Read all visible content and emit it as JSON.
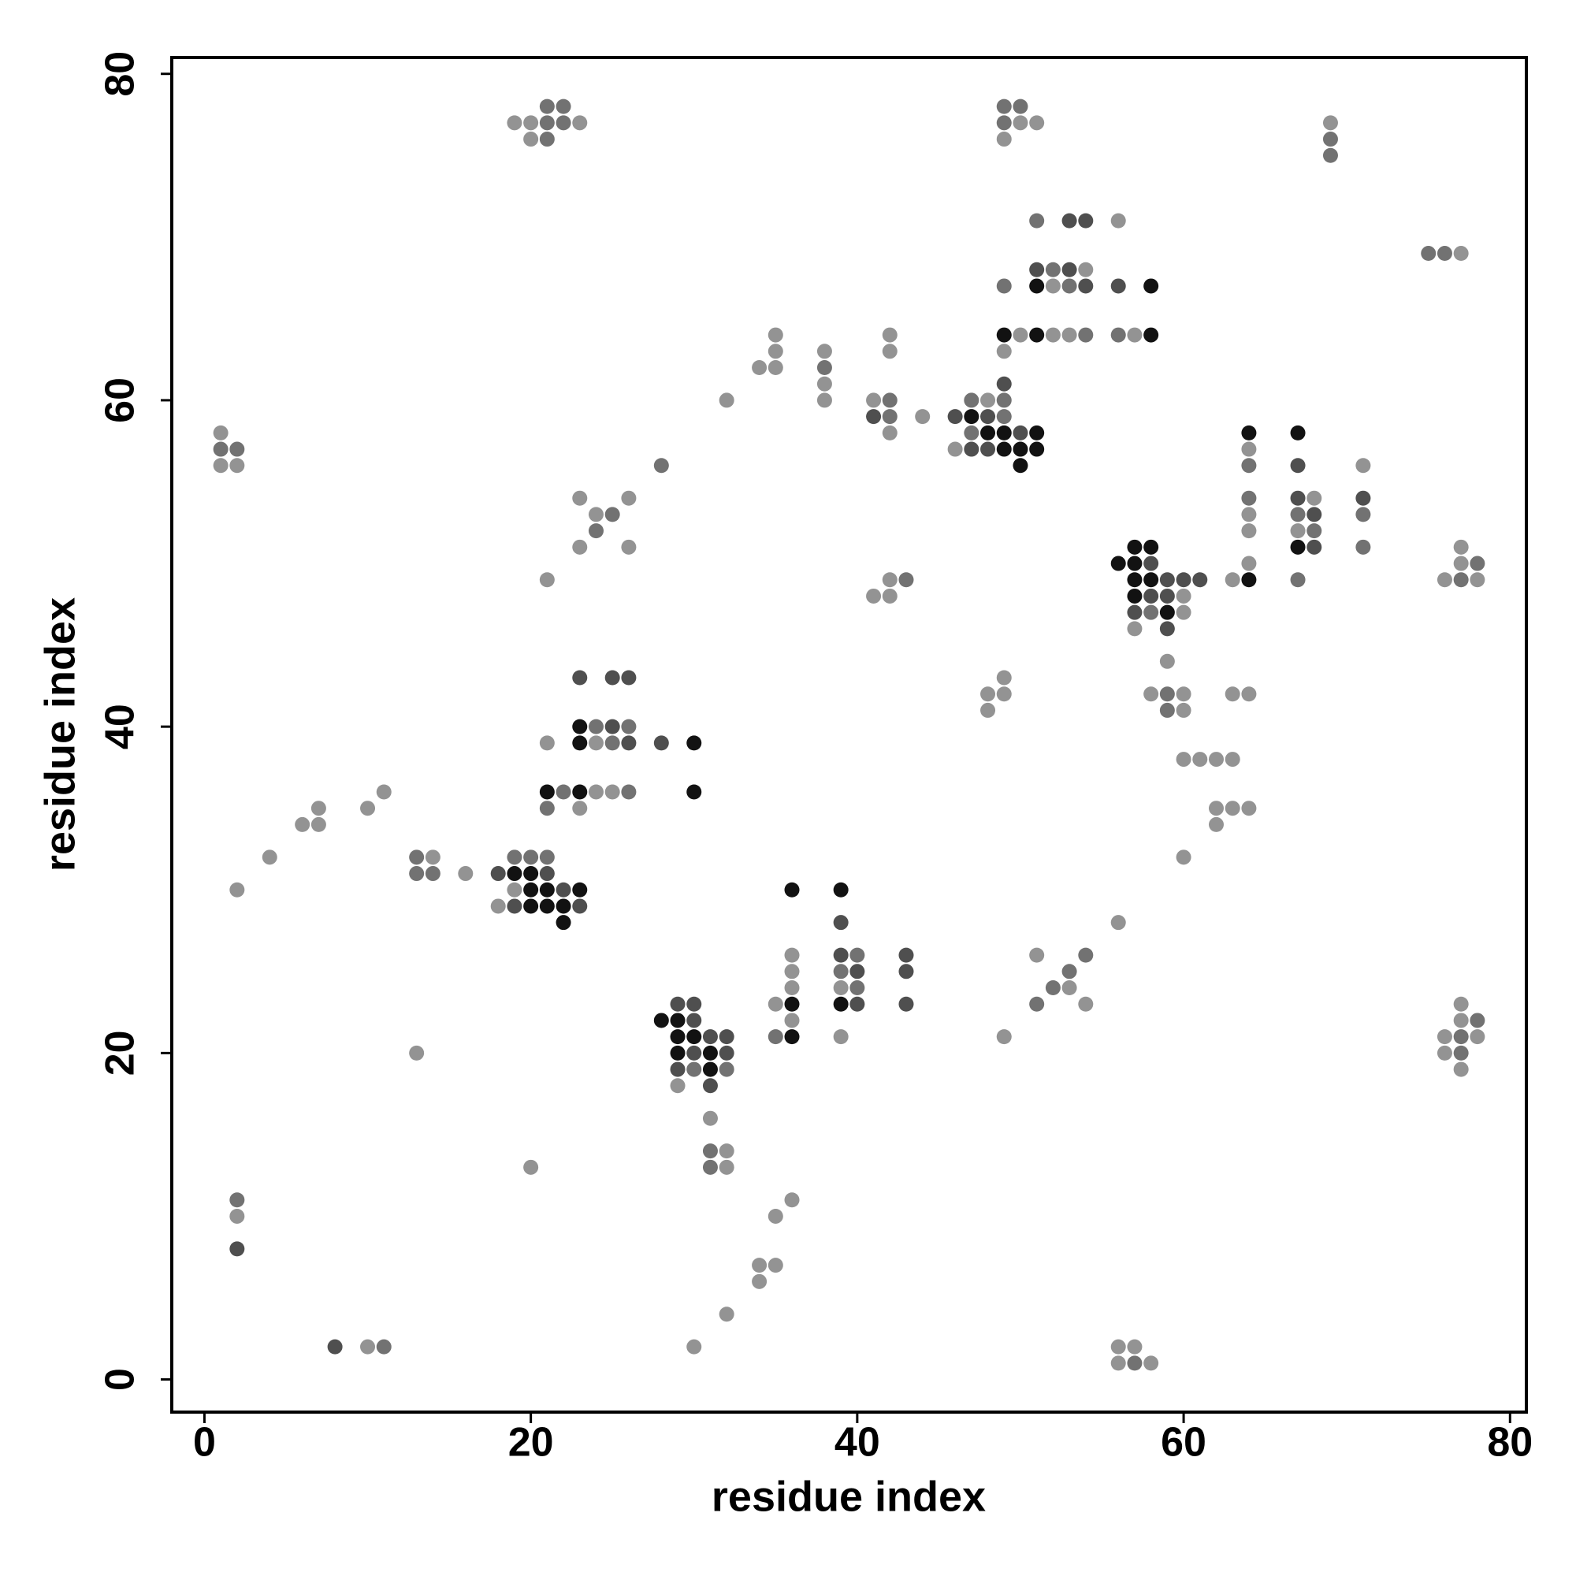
{
  "chart_data": {
    "type": "scatter",
    "x_label": "residue index",
    "y_label": "residue index",
    "xlim": [
      -2,
      81
    ],
    "ylim": [
      -2,
      81
    ],
    "xticks": [
      0,
      20,
      40,
      60,
      80
    ],
    "yticks": [
      0,
      20,
      40,
      60,
      80
    ],
    "series": [
      {
        "color": "#939393",
        "x": [
          19,
          20,
          23,
          20,
          50,
          51,
          49,
          69,
          77,
          56,
          54,
          52,
          50,
          52,
          53,
          57,
          49,
          35,
          35,
          35,
          34,
          38,
          38,
          38,
          42,
          42,
          32,
          41,
          42,
          44,
          48,
          46,
          1,
          1,
          2,
          23,
          24,
          26,
          23,
          26,
          21,
          41,
          42,
          42,
          60,
          60,
          57,
          64,
          64,
          64,
          64,
          63,
          67,
          68,
          71,
          77,
          77,
          78,
          76,
          59,
          58,
          60,
          60,
          48,
          49,
          49,
          48,
          63,
          64,
          60,
          61,
          62,
          63,
          62,
          63,
          64,
          62,
          60,
          21,
          24,
          24,
          25,
          23,
          2,
          4,
          6,
          7,
          7,
          10,
          11,
          14,
          16,
          19,
          18,
          56,
          36,
          36,
          36,
          36,
          35,
          39,
          39,
          51,
          53,
          54,
          49,
          77,
          77,
          76,
          78,
          76,
          77,
          13,
          29,
          31,
          32,
          32,
          20,
          2,
          36,
          35,
          34,
          35,
          34,
          32,
          10,
          30,
          56,
          57,
          56,
          58
        ],
        "values": [
          77,
          77,
          77,
          76,
          77,
          77,
          76,
          77,
          69,
          71,
          68,
          67,
          64,
          64,
          64,
          64,
          63,
          64,
          63,
          62,
          62,
          63,
          61,
          60,
          64,
          63,
          60,
          60,
          58,
          59,
          60,
          57,
          58,
          56,
          56,
          54,
          53,
          54,
          51,
          51,
          49,
          48,
          49,
          48,
          48,
          47,
          46,
          57,
          53,
          52,
          50,
          49,
          52,
          54,
          56,
          51,
          50,
          49,
          49,
          44,
          42,
          42,
          41,
          42,
          42,
          43,
          41,
          42,
          42,
          38,
          38,
          38,
          38,
          35,
          35,
          35,
          34,
          32,
          39,
          39,
          36,
          36,
          35,
          30,
          32,
          34,
          35,
          34,
          35,
          36,
          32,
          31,
          30,
          29,
          28,
          26,
          25,
          24,
          22,
          23,
          24,
          21,
          26,
          24,
          23,
          21,
          23,
          22,
          21,
          21,
          20,
          19,
          20,
          18,
          16,
          14,
          13,
          13,
          10,
          11,
          10,
          7,
          7,
          6,
          4,
          2,
          2,
          2,
          2,
          1,
          1
        ]
      },
      {
        "color": "#727272",
        "x": [
          21,
          22,
          21,
          22,
          21,
          49,
          50,
          49,
          69,
          69,
          75,
          76,
          51,
          52,
          49,
          53,
          54,
          56,
          38,
          42,
          42,
          47,
          49,
          49,
          47,
          1,
          2,
          28,
          25,
          24,
          43,
          58,
          64,
          64,
          67,
          67,
          68,
          71,
          71,
          77,
          78,
          59,
          59,
          24,
          26,
          25,
          22,
          26,
          21,
          13,
          13,
          14,
          19,
          20,
          21,
          30,
          32,
          35,
          39,
          40,
          40,
          52,
          53,
          54,
          51,
          78,
          77,
          77,
          31,
          31,
          2,
          11,
          57
        ],
        "values": [
          77,
          77,
          78,
          78,
          76,
          78,
          78,
          77,
          76,
          75,
          69,
          69,
          71,
          68,
          67,
          67,
          64,
          64,
          62,
          60,
          59,
          60,
          60,
          59,
          58,
          57,
          57,
          56,
          53,
          52,
          49,
          47,
          56,
          54,
          53,
          49,
          52,
          53,
          51,
          49,
          50,
          42,
          41,
          40,
          40,
          39,
          36,
          36,
          35,
          32,
          31,
          31,
          32,
          32,
          32,
          19,
          19,
          21,
          25,
          26,
          24,
          24,
          25,
          26,
          23,
          22,
          21,
          20,
          14,
          13,
          11,
          2,
          1
        ]
      },
      {
        "color": "#4f4f4f",
        "x": [
          53,
          54,
          51,
          53,
          54,
          56,
          41,
          46,
          48,
          50,
          47,
          48,
          49,
          58,
          59,
          60,
          61,
          58,
          59,
          57,
          59,
          67,
          67,
          68,
          68,
          71,
          23,
          25,
          26,
          25,
          26,
          28,
          18,
          21,
          22,
          19,
          23,
          39,
          39,
          40,
          40,
          43,
          43,
          43,
          29,
          30,
          30,
          31,
          32,
          30,
          32,
          29,
          31,
          2,
          8
        ],
        "values": [
          71,
          71,
          68,
          68,
          67,
          67,
          59,
          59,
          59,
          58,
          57,
          57,
          61,
          50,
          49,
          49,
          49,
          48,
          48,
          47,
          46,
          56,
          54,
          53,
          51,
          54,
          43,
          43,
          43,
          40,
          39,
          39,
          31,
          31,
          30,
          29,
          29,
          28,
          26,
          25,
          23,
          26,
          25,
          23,
          23,
          23,
          22,
          21,
          21,
          20,
          20,
          19,
          18,
          8,
          2
        ]
      },
      {
        "color": "#121212",
        "x": [
          51,
          58,
          49,
          51,
          58,
          47,
          48,
          49,
          51,
          49,
          50,
          51,
          50,
          57,
          58,
          56,
          57,
          57,
          58,
          57,
          59,
          64,
          64,
          67,
          67,
          23,
          23,
          30,
          21,
          23,
          30,
          19,
          20,
          20,
          21,
          23,
          20,
          21,
          22,
          22,
          36,
          39,
          36,
          36,
          39,
          28,
          29,
          29,
          30,
          29,
          31,
          31
        ],
        "values": [
          67,
          67,
          64,
          64,
          64,
          59,
          58,
          58,
          58,
          57,
          57,
          57,
          56,
          51,
          51,
          50,
          50,
          49,
          49,
          48,
          47,
          58,
          49,
          58,
          51,
          40,
          39,
          39,
          36,
          36,
          36,
          31,
          31,
          30,
          30,
          30,
          29,
          29,
          29,
          28,
          30,
          30,
          23,
          21,
          23,
          22,
          22,
          21,
          21,
          20,
          20,
          19
        ]
      }
    ]
  }
}
